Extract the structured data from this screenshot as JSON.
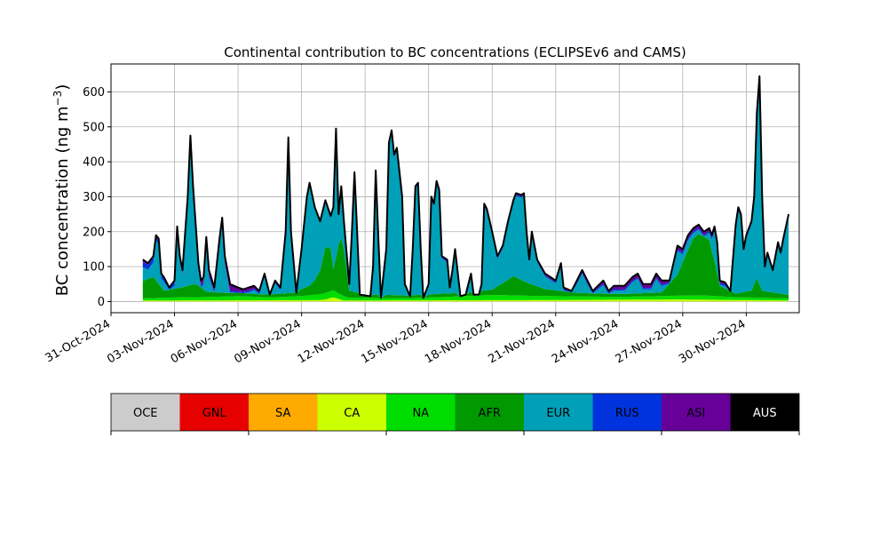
{
  "chart_data": {
    "type": "area",
    "title": "Continental contribution to BC concentrations (ECLIPSEv6 and CAMS)",
    "ylabel": "BC concentration (ng m",
    "ylabel_sup": "−3",
    "ylabel_close": ")",
    "xlabel": "",
    "ylim": [
      -32,
      680
    ],
    "yticks": [
      0,
      100,
      200,
      300,
      400,
      500,
      600
    ],
    "xlim": [
      "2024-10-31T00:00",
      "2024-12-02T12:00"
    ],
    "xticks": [
      "31-Oct-2024",
      "03-Nov-2024",
      "06-Nov-2024",
      "09-Nov-2024",
      "12-Nov-2024",
      "15-Nov-2024",
      "18-Nov-2024",
      "21-Nov-2024",
      "24-Nov-2024",
      "27-Nov-2024",
      "30-Nov-2024"
    ],
    "grid": true,
    "stack_order": [
      "CA",
      "NA",
      "AFR",
      "EUR",
      "RUS",
      "ASI"
    ],
    "series": [
      {
        "name": "OCE",
        "color": "#cccccc"
      },
      {
        "name": "GNL",
        "color": "#e60000"
      },
      {
        "name": "SA",
        "color": "#ffaa00"
      },
      {
        "name": "CA",
        "color": "#ccff00"
      },
      {
        "name": "NA",
        "color": "#00dd00"
      },
      {
        "name": "AFR",
        "color": "#009a00"
      },
      {
        "name": "EUR",
        "color": "#00a0b8"
      },
      {
        "name": "RUS",
        "color": "#0033dd"
      },
      {
        "name": "ASI",
        "color": "#660099"
      },
      {
        "name": "AUS",
        "color": "#000000"
      }
    ],
    "total": [
      [
        "2024-11-01T12:00",
        120
      ],
      [
        "2024-11-01T18:00",
        110
      ],
      [
        "2024-11-02T00:00",
        130
      ],
      [
        "2024-11-02T03:00",
        190
      ],
      [
        "2024-11-02T06:00",
        180
      ],
      [
        "2024-11-02T09:00",
        80
      ],
      [
        "2024-11-02T12:00",
        70
      ],
      [
        "2024-11-02T18:00",
        40
      ],
      [
        "2024-11-03T00:00",
        60
      ],
      [
        "2024-11-03T03:00",
        215
      ],
      [
        "2024-11-03T06:00",
        130
      ],
      [
        "2024-11-03T09:00",
        90
      ],
      [
        "2024-11-03T15:00",
        300
      ],
      [
        "2024-11-03T18:00",
        475
      ],
      [
        "2024-11-03T21:00",
        330
      ],
      [
        "2024-11-04T03:00",
        110
      ],
      [
        "2024-11-04T06:00",
        60
      ],
      [
        "2024-11-04T09:00",
        70
      ],
      [
        "2024-11-04T12:00",
        185
      ],
      [
        "2024-11-04T15:00",
        90
      ],
      [
        "2024-11-04T21:00",
        40
      ],
      [
        "2024-11-05T03:00",
        180
      ],
      [
        "2024-11-05T06:00",
        240
      ],
      [
        "2024-11-05T09:00",
        130
      ],
      [
        "2024-11-05T15:00",
        50
      ],
      [
        "2024-11-06T00:00",
        40
      ],
      [
        "2024-11-06T06:00",
        35
      ],
      [
        "2024-11-06T12:00",
        40
      ],
      [
        "2024-11-06T18:00",
        45
      ],
      [
        "2024-11-07T00:00",
        30
      ],
      [
        "2024-11-07T06:00",
        80
      ],
      [
        "2024-11-07T12:00",
        20
      ],
      [
        "2024-11-07T18:00",
        60
      ],
      [
        "2024-11-08T00:00",
        40
      ],
      [
        "2024-11-08T06:00",
        200
      ],
      [
        "2024-11-08T09:00",
        470
      ],
      [
        "2024-11-08T12:00",
        200
      ],
      [
        "2024-11-08T18:00",
        25
      ],
      [
        "2024-11-09T00:00",
        150
      ],
      [
        "2024-11-09T06:00",
        300
      ],
      [
        "2024-11-09T09:00",
        340
      ],
      [
        "2024-11-09T15:00",
        270
      ],
      [
        "2024-11-09T21:00",
        230
      ],
      [
        "2024-11-10T03:00",
        290
      ],
      [
        "2024-11-10T09:00",
        245
      ],
      [
        "2024-11-10T12:00",
        270
      ],
      [
        "2024-11-10T15:00",
        495
      ],
      [
        "2024-11-10T18:00",
        250
      ],
      [
        "2024-11-10T21:00",
        330
      ],
      [
        "2024-11-11T00:00",
        230
      ],
      [
        "2024-11-11T06:00",
        50
      ],
      [
        "2024-11-11T09:00",
        200
      ],
      [
        "2024-11-11T12:00",
        370
      ],
      [
        "2024-11-11T15:00",
        200
      ],
      [
        "2024-11-11T18:00",
        20
      ],
      [
        "2024-11-12T06:00",
        15
      ],
      [
        "2024-11-12T09:00",
        100
      ],
      [
        "2024-11-12T12:00",
        375
      ],
      [
        "2024-11-12T15:00",
        180
      ],
      [
        "2024-11-12T18:00",
        10
      ],
      [
        "2024-11-13T00:00",
        150
      ],
      [
        "2024-11-13T03:00",
        455
      ],
      [
        "2024-11-13T06:00",
        490
      ],
      [
        "2024-11-13T09:00",
        420
      ],
      [
        "2024-11-13T12:00",
        440
      ],
      [
        "2024-11-13T18:00",
        300
      ],
      [
        "2024-11-13T21:00",
        50
      ],
      [
        "2024-11-14T03:00",
        15
      ],
      [
        "2024-11-14T06:00",
        150
      ],
      [
        "2024-11-14T09:00",
        330
      ],
      [
        "2024-11-14T12:00",
        340
      ],
      [
        "2024-11-14T15:00",
        150
      ],
      [
        "2024-11-14T18:00",
        10
      ],
      [
        "2024-11-15T00:00",
        50
      ],
      [
        "2024-11-15T03:00",
        300
      ],
      [
        "2024-11-15T06:00",
        280
      ],
      [
        "2024-11-15T09:00",
        345
      ],
      [
        "2024-11-15T12:00",
        320
      ],
      [
        "2024-11-15T15:00",
        130
      ],
      [
        "2024-11-15T21:00",
        120
      ],
      [
        "2024-11-16T00:00",
        40
      ],
      [
        "2024-11-16T03:00",
        90
      ],
      [
        "2024-11-16T06:00",
        150
      ],
      [
        "2024-11-16T12:00",
        15
      ],
      [
        "2024-11-16T18:00",
        20
      ],
      [
        "2024-11-17T00:00",
        80
      ],
      [
        "2024-11-17T03:00",
        20
      ],
      [
        "2024-11-17T09:00",
        20
      ],
      [
        "2024-11-17T12:00",
        50
      ],
      [
        "2024-11-17T15:00",
        280
      ],
      [
        "2024-11-17T18:00",
        265
      ],
      [
        "2024-11-18T00:00",
        200
      ],
      [
        "2024-11-18T06:00",
        130
      ],
      [
        "2024-11-18T12:00",
        160
      ],
      [
        "2024-11-18T18:00",
        230
      ],
      [
        "2024-11-19T00:00",
        290
      ],
      [
        "2024-11-19T03:00",
        310
      ],
      [
        "2024-11-19T09:00",
        305
      ],
      [
        "2024-11-19T12:00",
        310
      ],
      [
        "2024-11-19T15:00",
        200
      ],
      [
        "2024-11-19T18:00",
        120
      ],
      [
        "2024-11-19T21:00",
        200
      ],
      [
        "2024-11-20T00:00",
        160
      ],
      [
        "2024-11-20T03:00",
        120
      ],
      [
        "2024-11-20T12:00",
        80
      ],
      [
        "2024-11-21T00:00",
        60
      ],
      [
        "2024-11-21T06:00",
        110
      ],
      [
        "2024-11-21T09:00",
        40
      ],
      [
        "2024-11-21T18:00",
        30
      ],
      [
        "2024-11-22T00:00",
        60
      ],
      [
        "2024-11-22T06:00",
        90
      ],
      [
        "2024-11-22T12:00",
        60
      ],
      [
        "2024-11-22T18:00",
        30
      ],
      [
        "2024-11-23T06:00",
        60
      ],
      [
        "2024-11-23T12:00",
        30
      ],
      [
        "2024-11-23T18:00",
        45
      ],
      [
        "2024-11-24T06:00",
        45
      ],
      [
        "2024-11-24T15:00",
        70
      ],
      [
        "2024-11-24T21:00",
        80
      ],
      [
        "2024-11-25T03:00",
        50
      ],
      [
        "2024-11-25T12:00",
        50
      ],
      [
        "2024-11-25T18:00",
        80
      ],
      [
        "2024-11-26T00:00",
        60
      ],
      [
        "2024-11-26T09:00",
        60
      ],
      [
        "2024-11-26T18:00",
        160
      ],
      [
        "2024-11-27T00:00",
        150
      ],
      [
        "2024-11-27T06:00",
        190
      ],
      [
        "2024-11-27T12:00",
        210
      ],
      [
        "2024-11-27T18:00",
        220
      ],
      [
        "2024-11-28T00:00",
        200
      ],
      [
        "2024-11-28T06:00",
        210
      ],
      [
        "2024-11-28T09:00",
        190
      ],
      [
        "2024-11-28T12:00",
        215
      ],
      [
        "2024-11-28T15:00",
        170
      ],
      [
        "2024-11-28T18:00",
        60
      ],
      [
        "2024-11-29T00:00",
        55
      ],
      [
        "2024-11-29T06:00",
        30
      ],
      [
        "2024-11-29T12:00",
        220
      ],
      [
        "2024-11-29T15:00",
        270
      ],
      [
        "2024-11-29T18:00",
        250
      ],
      [
        "2024-11-29T21:00",
        150
      ],
      [
        "2024-11-30T00:00",
        190
      ],
      [
        "2024-11-30T06:00",
        230
      ],
      [
        "2024-11-30T09:00",
        300
      ],
      [
        "2024-11-30T12:00",
        540
      ],
      [
        "2024-11-30T15:00",
        645
      ],
      [
        "2024-11-30T18:00",
        300
      ],
      [
        "2024-11-30T21:00",
        100
      ],
      [
        "2024-12-01T00:00",
        140
      ],
      [
        "2024-12-01T06:00",
        90
      ],
      [
        "2024-12-01T12:00",
        170
      ],
      [
        "2024-12-01T15:00",
        140
      ],
      [
        "2024-12-01T18:00",
        180
      ],
      [
        "2024-12-02T00:00",
        250
      ]
    ],
    "contributions": {
      "CA": [
        [
          "2024-11-01T12:00",
          3
        ],
        [
          "2024-11-10T00:00",
          4
        ],
        [
          "2024-11-10T12:00",
          12
        ],
        [
          "2024-11-11T00:00",
          3
        ],
        [
          "2024-11-20T00:00",
          4
        ],
        [
          "2024-11-27T00:00",
          6
        ],
        [
          "2024-11-28T12:00",
          5
        ],
        [
          "2024-12-02T00:00",
          3
        ]
      ],
      "NA": [
        [
          "2024-11-01T12:00",
          6
        ],
        [
          "2024-11-02T12:00",
          8
        ],
        [
          "2024-11-05T00:00",
          10
        ],
        [
          "2024-11-06T00:00",
          12
        ],
        [
          "2024-11-07T12:00",
          8
        ],
        [
          "2024-11-09T00:00",
          12
        ],
        [
          "2024-11-10T12:00",
          20
        ],
        [
          "2024-11-11T06:00",
          8
        ],
        [
          "2024-11-14T00:00",
          6
        ],
        [
          "2024-11-16T00:00",
          10
        ],
        [
          "2024-11-18T00:00",
          15
        ],
        [
          "2024-11-20T00:00",
          12
        ],
        [
          "2024-11-22T00:00",
          10
        ],
        [
          "2024-11-24T00:00",
          8
        ],
        [
          "2024-11-26T00:00",
          10
        ],
        [
          "2024-11-28T00:00",
          12
        ],
        [
          "2024-11-29T12:00",
          8
        ],
        [
          "2024-12-02T00:00",
          6
        ]
      ],
      "AFR": [
        [
          "2024-11-01T12:00",
          50
        ],
        [
          "2024-11-02T00:00",
          60
        ],
        [
          "2024-11-02T12:00",
          20
        ],
        [
          "2024-11-03T12:00",
          30
        ],
        [
          "2024-11-04T00:00",
          40
        ],
        [
          "2024-11-04T12:00",
          15
        ],
        [
          "2024-11-05T12:00",
          10
        ],
        [
          "2024-11-07T00:00",
          8
        ],
        [
          "2024-11-08T12:00",
          10
        ],
        [
          "2024-11-09T12:00",
          30
        ],
        [
          "2024-11-10T00:00",
          80
        ],
        [
          "2024-11-10T06:00",
          185
        ],
        [
          "2024-11-10T12:00",
          60
        ],
        [
          "2024-11-10T18:00",
          140
        ],
        [
          "2024-11-10T22:00",
          170
        ],
        [
          "2024-11-11T06:00",
          20
        ],
        [
          "2024-11-12T00:00",
          10
        ],
        [
          "2024-11-14T00:00",
          8
        ],
        [
          "2024-11-16T00:00",
          10
        ],
        [
          "2024-11-18T00:00",
          15
        ],
        [
          "2024-11-19T00:00",
          55
        ],
        [
          "2024-11-19T18:00",
          35
        ],
        [
          "2024-11-20T12:00",
          20
        ],
        [
          "2024-11-22T00:00",
          10
        ],
        [
          "2024-11-24T00:00",
          8
        ],
        [
          "2024-11-26T00:00",
          10
        ],
        [
          "2024-11-26T18:00",
          60
        ],
        [
          "2024-11-27T06:00",
          130
        ],
        [
          "2024-11-27T15:00",
          180
        ],
        [
          "2024-11-28T06:00",
          160
        ],
        [
          "2024-11-28T12:00",
          100
        ],
        [
          "2024-11-28T18:00",
          30
        ],
        [
          "2024-11-29T12:00",
          10
        ],
        [
          "2024-11-30T06:00",
          20
        ],
        [
          "2024-11-30T12:00",
          55
        ],
        [
          "2024-11-30T18:00",
          20
        ],
        [
          "2024-12-02T00:00",
          10
        ]
      ],
      "RUS": [
        [
          "2024-11-01T12:00",
          15
        ],
        [
          "2024-11-02T12:00",
          8
        ],
        [
          "2024-11-06T00:00",
          4
        ],
        [
          "2024-11-10T00:00",
          3
        ],
        [
          "2024-11-20T00:00",
          3
        ],
        [
          "2024-11-26T00:00",
          4
        ],
        [
          "2024-11-28T12:00",
          5
        ],
        [
          "2024-12-02T00:00",
          4
        ]
      ],
      "ASI": [
        [
          "2024-11-01T12:00",
          6
        ],
        [
          "2024-11-02T12:00",
          5
        ],
        [
          "2024-11-05T12:00",
          20
        ],
        [
          "2024-11-06T00:00",
          18
        ],
        [
          "2024-11-06T12:00",
          10
        ],
        [
          "2024-11-07T00:00",
          5
        ],
        [
          "2024-11-10T00:00",
          3
        ],
        [
          "2024-11-21T00:00",
          5
        ],
        [
          "2024-11-24T00:00",
          10
        ],
        [
          "2024-11-26T12:00",
          12
        ],
        [
          "2024-11-27T00:00",
          10
        ],
        [
          "2024-11-28T12:00",
          8
        ],
        [
          "2024-11-29T00:00",
          6
        ],
        [
          "2024-12-02T00:00",
          3
        ]
      ]
    }
  }
}
